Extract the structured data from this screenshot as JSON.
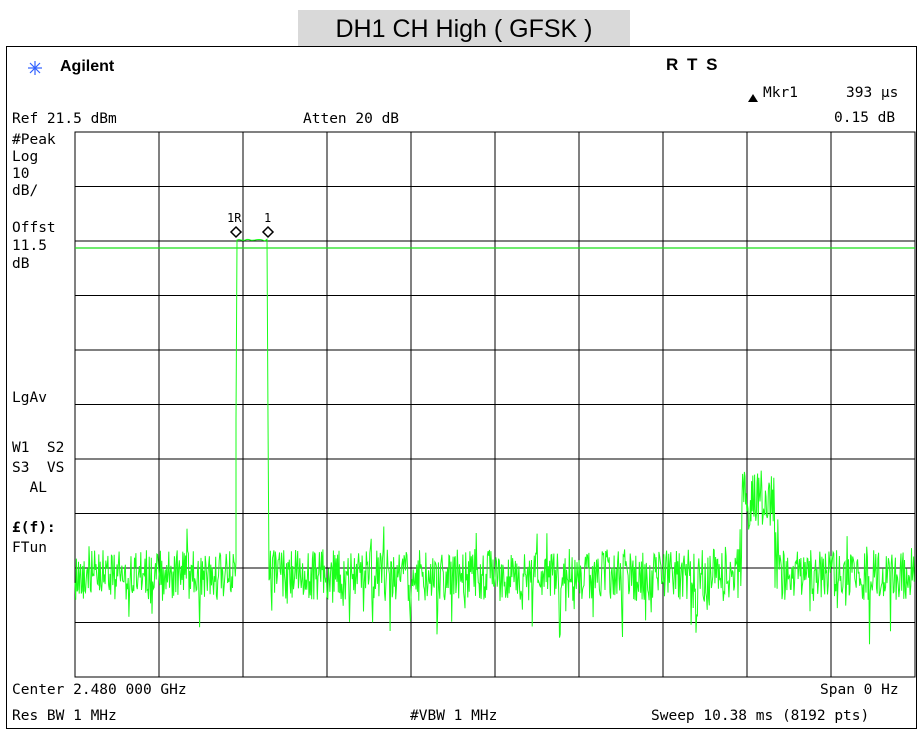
{
  "title": "DH1 CH High ( GFSK )",
  "header": {
    "brand": "Agilent",
    "status": "R  T S",
    "marker_label": "Mkr1",
    "marker_value": "393 μs",
    "marker_delta_value": "0.15 dB",
    "ref_level": "Ref 21.5 dBm",
    "attenuation": "Atten 20 dB"
  },
  "side_labels": {
    "detector": "#Peak",
    "scale_type": "Log",
    "scale_value": "10",
    "scale_unit": "dB/",
    "offset_label": "Offst",
    "offset_value": "11.5",
    "offset_unit": "dB",
    "avg_mode": "LgAv",
    "traces_1": "W1  S2",
    "traces_2": "S3  VS",
    "traces_3": "  AL",
    "func_label": "£(f):",
    "func_value": "FTun"
  },
  "footer": {
    "center": "Center 2.480 000 GHz",
    "span": "Span 0 Hz",
    "rbw": "Res BW 1 MHz",
    "vbw": "#VBW 1 MHz",
    "sweep": "Sweep 10.38 ms (8192 pts)"
  },
  "markers": {
    "marker_1r": "1R",
    "marker_1": "1"
  },
  "colors": {
    "trace": "#19ff19",
    "display_line": "#19e019",
    "grid": "#000000",
    "title_band": "#d9d9d9"
  }
}
